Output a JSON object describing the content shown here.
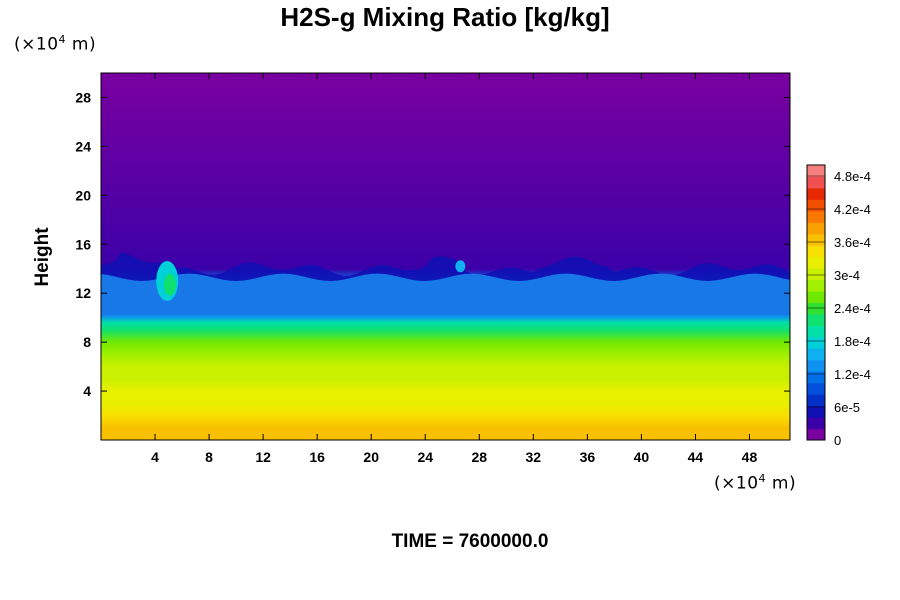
{
  "chart_data": {
    "type": "heatmap",
    "title": "H2S-g Mixing Ratio [kg/kg]",
    "ylabel": "Height",
    "xlabel": "",
    "x_unit": {
      "prefix": "(×10",
      "exp": "4",
      "suffix": " m)"
    },
    "y_unit": {
      "prefix": "(×10",
      "exp": "4",
      "suffix": " m)"
    },
    "xlim": [
      0,
      51
    ],
    "ylim": [
      0,
      30
    ],
    "x_ticks": [
      4,
      8,
      12,
      16,
      20,
      24,
      28,
      32,
      36,
      40,
      44,
      48
    ],
    "y_ticks": [
      4,
      8,
      12,
      16,
      20,
      24,
      28
    ],
    "colorbar": {
      "range": [
        0,
        0.0005
      ],
      "tick_labels": [
        "0",
        "6e-5",
        "1.2e-4",
        "1.8e-4",
        "2.4e-4",
        "3e-4",
        "3.6e-4",
        "4.2e-4",
        "4.8e-4"
      ],
      "tick_values": [
        0,
        6e-05,
        0.00012,
        0.00018,
        0.00024,
        0.0003,
        0.00036,
        0.00042,
        0.00048
      ],
      "colors": [
        "#7a00a0",
        "#3c00a8",
        "#1010b4",
        "#0030c8",
        "#0050dc",
        "#0070e8",
        "#1090f0",
        "#10b0f0",
        "#00d0d8",
        "#00e0a8",
        "#10e070",
        "#30e030",
        "#70e800",
        "#a0f000",
        "#c8f000",
        "#e8f000",
        "#f8e000",
        "#f8c000",
        "#f8a000",
        "#f87800",
        "#f05000",
        "#e82800",
        "#f05050",
        "#f88080"
      ]
    },
    "profile": {
      "height": [
        0,
        1,
        2,
        3,
        4,
        5,
        6,
        7,
        8,
        9,
        9.6,
        10.1,
        11,
        12,
        13,
        14,
        30
      ],
      "value": [
        0.00037,
        0.00036,
        0.00034,
        0.00033,
        0.00032,
        0.00031,
        0.0003,
        0.00028,
        0.00026,
        0.00022,
        0.00019,
        0.00013,
        0.00012,
        0.00012,
        0.00011,
        4e-05,
        0
      ]
    },
    "top_of_layer_height": 14
  },
  "footer": {
    "time_text": "TIME = 7600000.0"
  }
}
